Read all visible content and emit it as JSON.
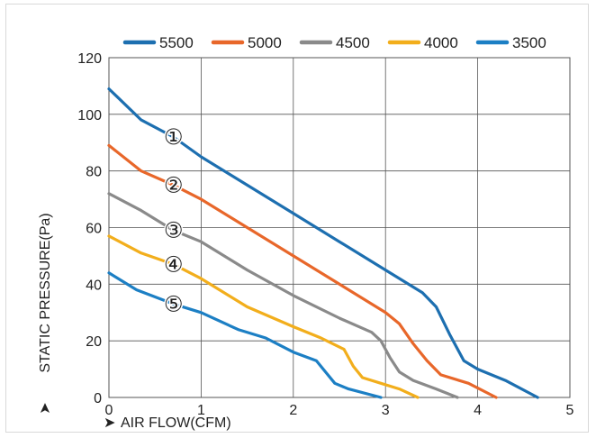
{
  "chart_data": {
    "type": "line",
    "xlabel": "AIR FLOW(CFM)",
    "ylabel": "STATIC PRESSURE(Pa)",
    "xlim": [
      0,
      5
    ],
    "ylim": [
      0,
      120
    ],
    "x_ticks": [
      "0",
      "1",
      "2",
      "3",
      "4",
      "5"
    ],
    "y_ticks": [
      "0",
      "20",
      "40",
      "60",
      "80",
      "100",
      "120"
    ],
    "grid": true,
    "legend_position": "top",
    "series": [
      {
        "name": "5500",
        "label": "①",
        "color": "#1d6fb0",
        "points": [
          [
            0,
            109
          ],
          [
            0.35,
            98
          ],
          [
            0.7,
            92
          ],
          [
            1.0,
            85
          ],
          [
            1.5,
            75
          ],
          [
            2.0,
            65
          ],
          [
            2.5,
            55
          ],
          [
            3.0,
            45
          ],
          [
            3.4,
            37
          ],
          [
            3.55,
            32
          ],
          [
            3.7,
            22
          ],
          [
            3.85,
            13
          ],
          [
            4.0,
            10
          ],
          [
            4.3,
            6
          ],
          [
            4.65,
            0
          ]
        ]
      },
      {
        "name": "5000",
        "label": "②",
        "color": "#e8672a",
        "points": [
          [
            0,
            89
          ],
          [
            0.35,
            80
          ],
          [
            0.7,
            75
          ],
          [
            1.0,
            70
          ],
          [
            1.5,
            60
          ],
          [
            2.0,
            50
          ],
          [
            2.5,
            40
          ],
          [
            3.0,
            30
          ],
          [
            3.15,
            26
          ],
          [
            3.3,
            19
          ],
          [
            3.45,
            13
          ],
          [
            3.6,
            8
          ],
          [
            3.9,
            5
          ],
          [
            4.2,
            0
          ]
        ]
      },
      {
        "name": "4500",
        "label": "③",
        "color": "#8a8a8a",
        "points": [
          [
            0,
            72
          ],
          [
            0.35,
            66
          ],
          [
            0.7,
            59
          ],
          [
            1.0,
            55
          ],
          [
            1.5,
            45
          ],
          [
            2.0,
            36
          ],
          [
            2.5,
            28
          ],
          [
            2.85,
            23
          ],
          [
            2.95,
            20
          ],
          [
            3.05,
            14
          ],
          [
            3.15,
            9
          ],
          [
            3.3,
            6
          ],
          [
            3.55,
            3
          ],
          [
            3.78,
            0
          ]
        ]
      },
      {
        "name": "4000",
        "label": "④",
        "color": "#f2ae1c",
        "points": [
          [
            0,
            57
          ],
          [
            0.35,
            51
          ],
          [
            0.7,
            47
          ],
          [
            1.0,
            42
          ],
          [
            1.5,
            32
          ],
          [
            2.0,
            25
          ],
          [
            2.3,
            21
          ],
          [
            2.55,
            17
          ],
          [
            2.65,
            11
          ],
          [
            2.75,
            7
          ],
          [
            2.95,
            5
          ],
          [
            3.15,
            3
          ],
          [
            3.35,
            0
          ]
        ]
      },
      {
        "name": "3500",
        "label": "⑤",
        "color": "#1c7fc4",
        "points": [
          [
            0,
            44
          ],
          [
            0.3,
            38
          ],
          [
            0.7,
            33
          ],
          [
            1.0,
            30
          ],
          [
            1.4,
            24
          ],
          [
            1.7,
            21
          ],
          [
            2.0,
            16
          ],
          [
            2.25,
            13
          ],
          [
            2.35,
            9
          ],
          [
            2.45,
            5
          ],
          [
            2.6,
            3
          ],
          [
            2.95,
            0
          ]
        ]
      }
    ]
  }
}
